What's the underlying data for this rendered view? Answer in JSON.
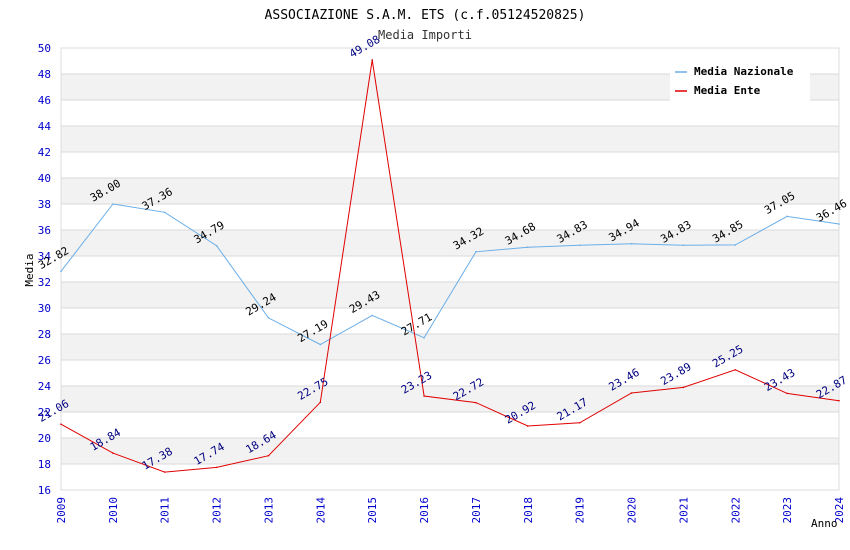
{
  "chart_data": {
    "type": "line",
    "title": "ASSOCIAZIONE S.A.M. ETS (c.f.05124520825)",
    "subtitle": "Media Importi",
    "xlabel": "Anno",
    "ylabel": "Media",
    "ylim": [
      16,
      50
    ],
    "ytick_step": 2,
    "grid": true,
    "legend_position": "top-right",
    "x": [
      "2009",
      "2010",
      "2011",
      "2012",
      "2013",
      "2014",
      "2015",
      "2016",
      "2017",
      "2018",
      "2019",
      "2020",
      "2021",
      "2022",
      "2023",
      "2024"
    ],
    "series": [
      {
        "name": "Media Nazionale",
        "color": "#6aaee8",
        "labels_color": "#000000",
        "values": [
          32.82,
          38.0,
          37.36,
          34.79,
          29.24,
          27.19,
          29.43,
          27.71,
          34.32,
          34.68,
          34.83,
          34.94,
          34.83,
          34.85,
          37.05,
          36.46
        ],
        "labels": [
          "32.82",
          "38.00",
          "37.36",
          "34.79",
          "29.24",
          "27.19",
          "29.43",
          "27.71",
          "34.32",
          "34.68",
          "34.83",
          "34.94",
          "34.83",
          "34.85",
          "37.05",
          "36.46"
        ]
      },
      {
        "name": "Media Ente",
        "color": "#e00000",
        "labels_color": "#000080",
        "values": [
          21.06,
          18.84,
          17.38,
          17.74,
          18.64,
          22.75,
          49.08,
          23.23,
          22.72,
          20.92,
          21.17,
          23.46,
          23.89,
          25.25,
          23.43,
          22.87
        ],
        "labels": [
          "21.06",
          "18.84",
          "17.38",
          "17.74",
          "18.64",
          "22.75",
          "49.08",
          "23.23",
          "22.72",
          "20.92",
          "21.17",
          "23.46",
          "23.89",
          "25.25",
          "23.43",
          "22.87"
        ]
      }
    ]
  }
}
